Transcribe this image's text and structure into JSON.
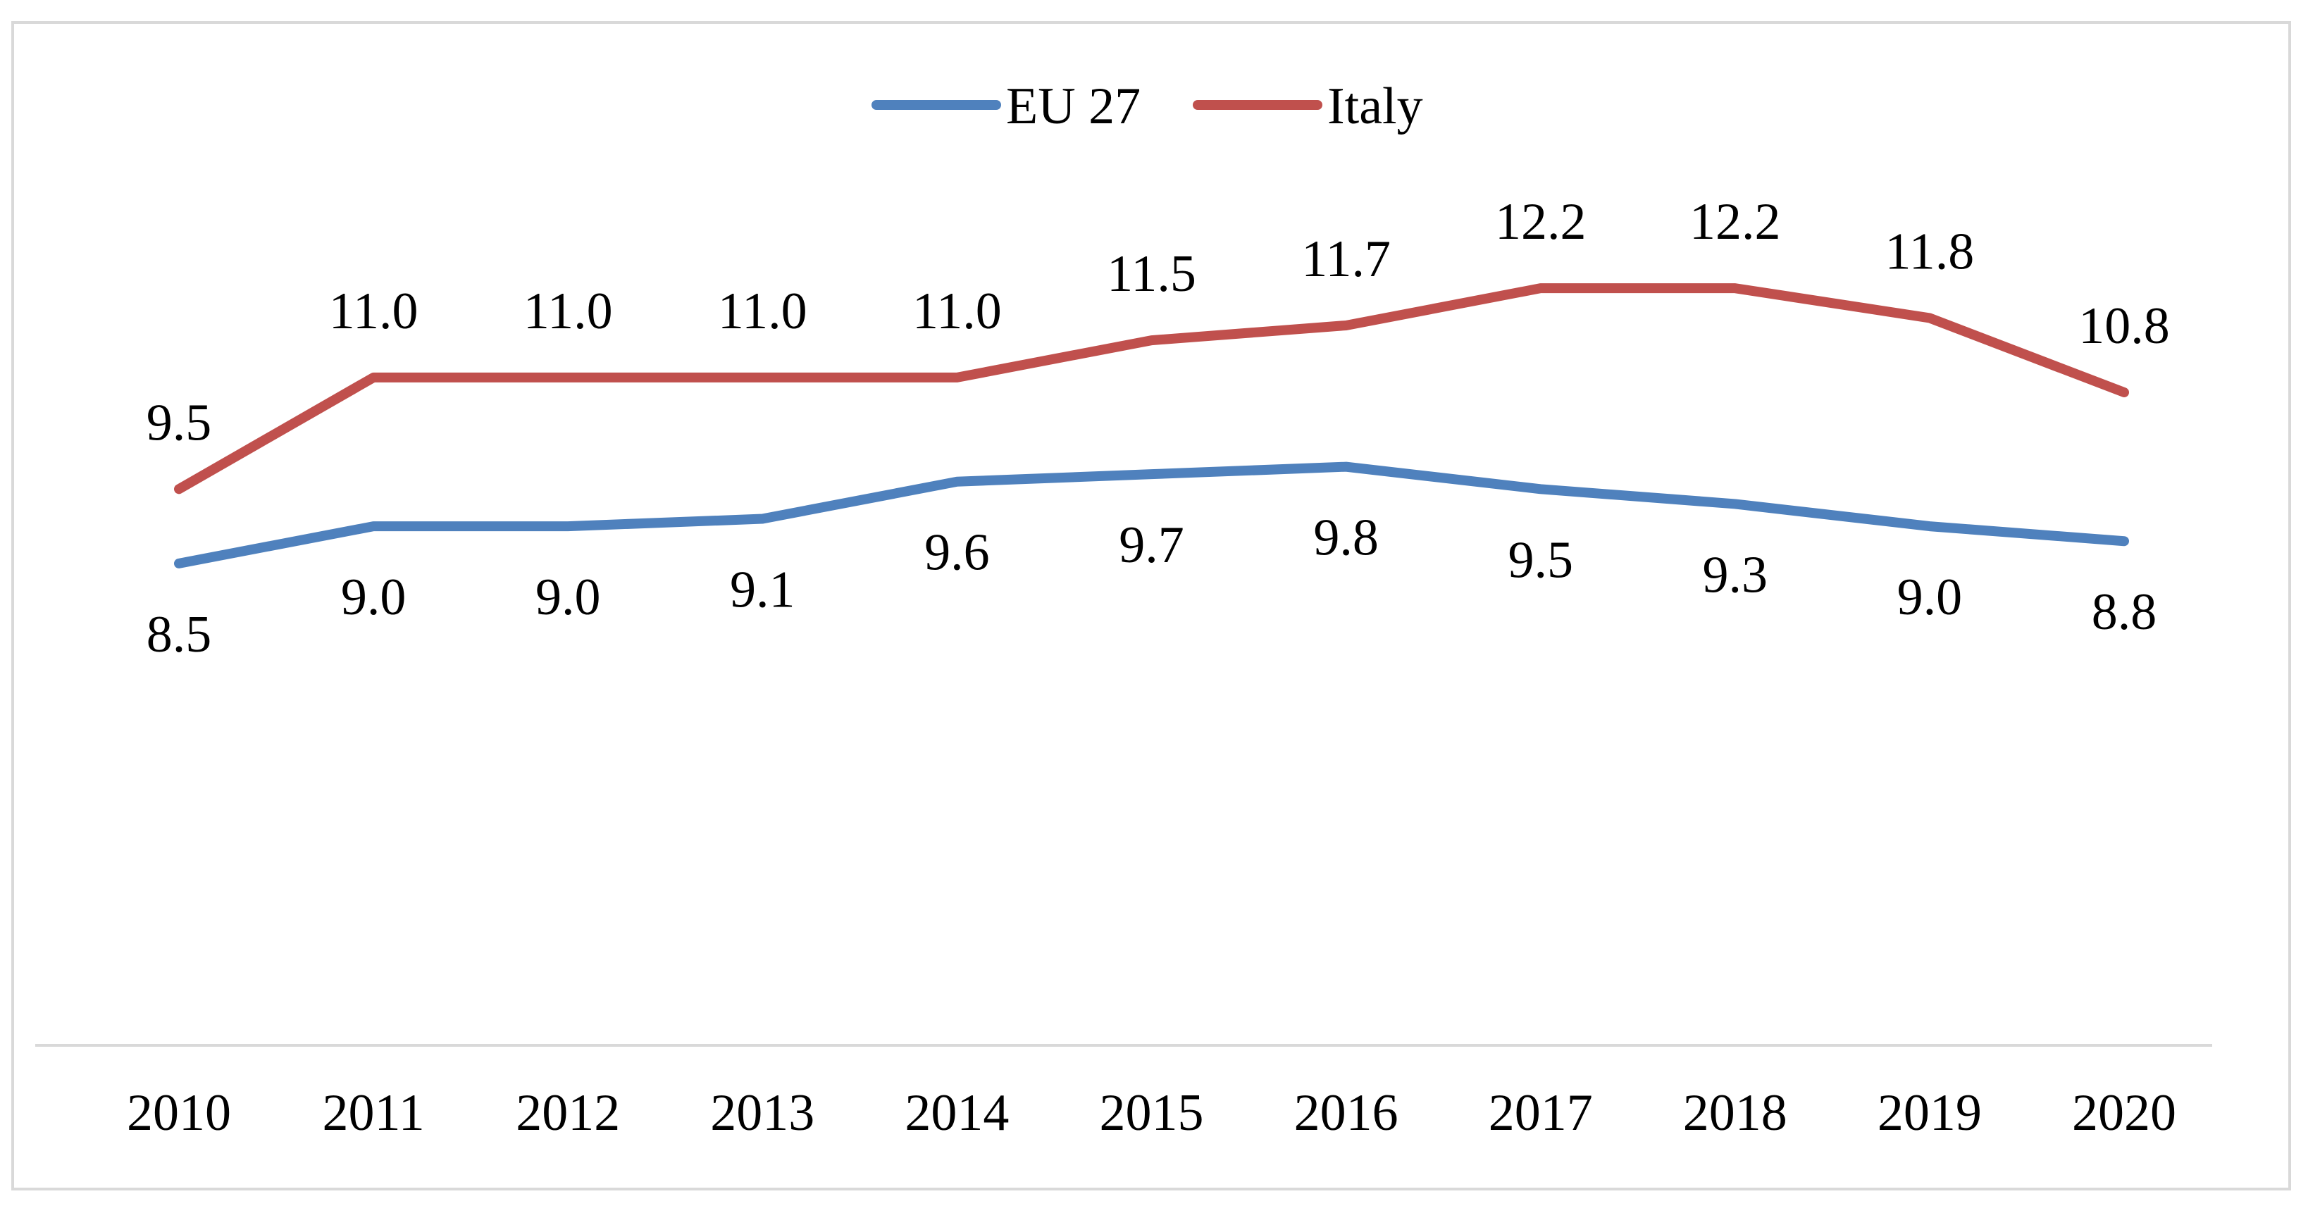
{
  "chart_data": {
    "type": "line",
    "title": "",
    "xlabel": "",
    "ylabel": "",
    "categories": [
      "2010",
      "2011",
      "2012",
      "2013",
      "2014",
      "2015",
      "2016",
      "2017",
      "2018",
      "2019",
      "2020"
    ],
    "ylim": [
      0,
      18
    ],
    "grid": false,
    "legend": "top-center",
    "series": [
      {
        "name": "EU 27",
        "color": "#4f81bd",
        "values": [
          8.5,
          9.0,
          9.0,
          9.1,
          9.6,
          9.7,
          9.8,
          9.5,
          9.3,
          9.0,
          8.8
        ],
        "labels": [
          "8.5",
          "9.0",
          "9.0",
          "9.1",
          "9.6",
          "9.7",
          "9.8",
          "9.5",
          "9.3",
          "9.0",
          "8.8"
        ],
        "label_position": "below"
      },
      {
        "name": "Italy",
        "color": "#c0504d",
        "values": [
          9.5,
          11.0,
          11.0,
          11.0,
          11.0,
          11.5,
          11.7,
          12.2,
          12.2,
          11.8,
          10.8
        ],
        "labels": [
          "9.5",
          "11.0",
          "11.0",
          "11.0",
          "11.0",
          "11.5",
          "11.7",
          "12.2",
          "12.2",
          "11.8",
          "10.8"
        ],
        "label_position": "above"
      }
    ],
    "axis_color": "#d9d9d9"
  }
}
